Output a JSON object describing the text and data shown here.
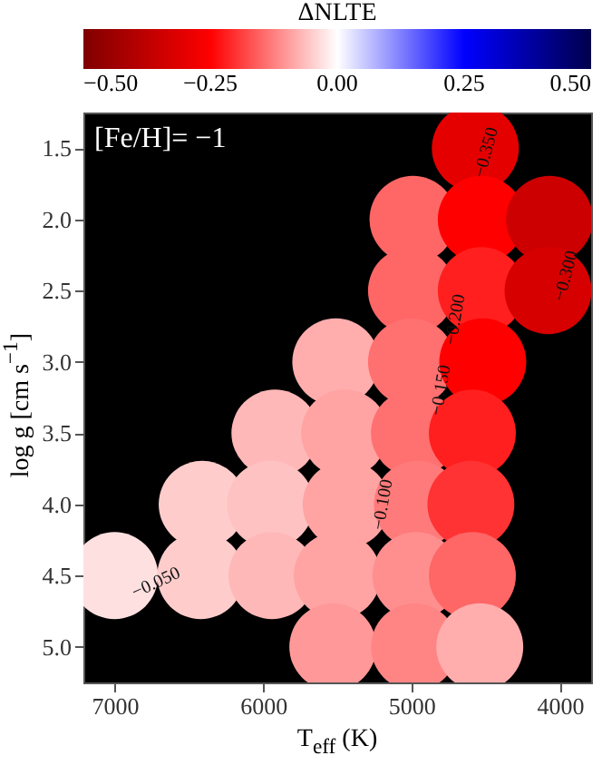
{
  "chart_data": {
    "type": "scatter",
    "xlabel": "T$_{eff}$ (K)",
    "ylabel": "log g [cm s$^{−1}$]",
    "clabel": "ΔNLTE",
    "clim": [
      -0.5,
      0.5
    ],
    "cticks": [
      {
        "value": -0.5,
        "label": "−0.50"
      },
      {
        "value": -0.25,
        "label": "−0.25"
      },
      {
        "value": 0,
        "label": "0.00"
      },
      {
        "value": 0.25,
        "label": "0.25"
      },
      {
        "value": 0.5,
        "label": "0.50"
      }
    ],
    "x": [
      4570,
      4990,
      4530,
      4070,
      5000,
      4530,
      4080,
      5510,
      5000,
      4520,
      5920,
      5450,
      4980,
      4590,
      6410,
      5950,
      5440,
      4960,
      4600,
      7000,
      6420,
      5940,
      5500,
      4970,
      4590,
      5530,
      4980,
      4540
    ],
    "values": [
      1.5,
      2.0,
      2.0,
      2.0,
      2.5,
      2.5,
      2.5,
      3.0,
      3.0,
      3.0,
      3.5,
      3.5,
      3.5,
      3.5,
      4.0,
      4.0,
      4.0,
      4.0,
      4.0,
      4.5,
      4.5,
      4.5,
      4.5,
      4.5,
      4.5,
      5.0,
      5.0,
      5.0
    ],
    "cvalues": [
      -0.3,
      -0.15,
      -0.25,
      -0.35,
      -0.15,
      -0.22,
      -0.33,
      -0.08,
      -0.14,
      -0.25,
      -0.07,
      -0.09,
      -0.14,
      -0.22,
      -0.05,
      -0.06,
      -0.09,
      -0.13,
      -0.2,
      -0.03,
      -0.05,
      -0.07,
      -0.09,
      -0.11,
      -0.15,
      -0.1,
      -0.12,
      -0.08
    ],
    "marker": "circle",
    "xlim": [
      7210,
      3790
    ],
    "xticks": [
      7000,
      6000,
      5000,
      4000
    ],
    "ylim": [
      5.25,
      1.25
    ],
    "yticks": [
      1.5,
      {
        "value": 2,
        "label": "2.0"
      },
      2.5,
      {
        "value": 3,
        "label": "3.0"
      },
      3.5,
      {
        "value": 4,
        "label": "4.0"
      },
      4.5,
      {
        "value": 5,
        "label": "5.0"
      }
    ],
    "annotations": [
      "[Fe/H]= −1",
      "−0.050",
      "−0.100",
      "−0.150",
      "−0.200",
      "−0.300",
      "−0.350"
    ]
  }
}
